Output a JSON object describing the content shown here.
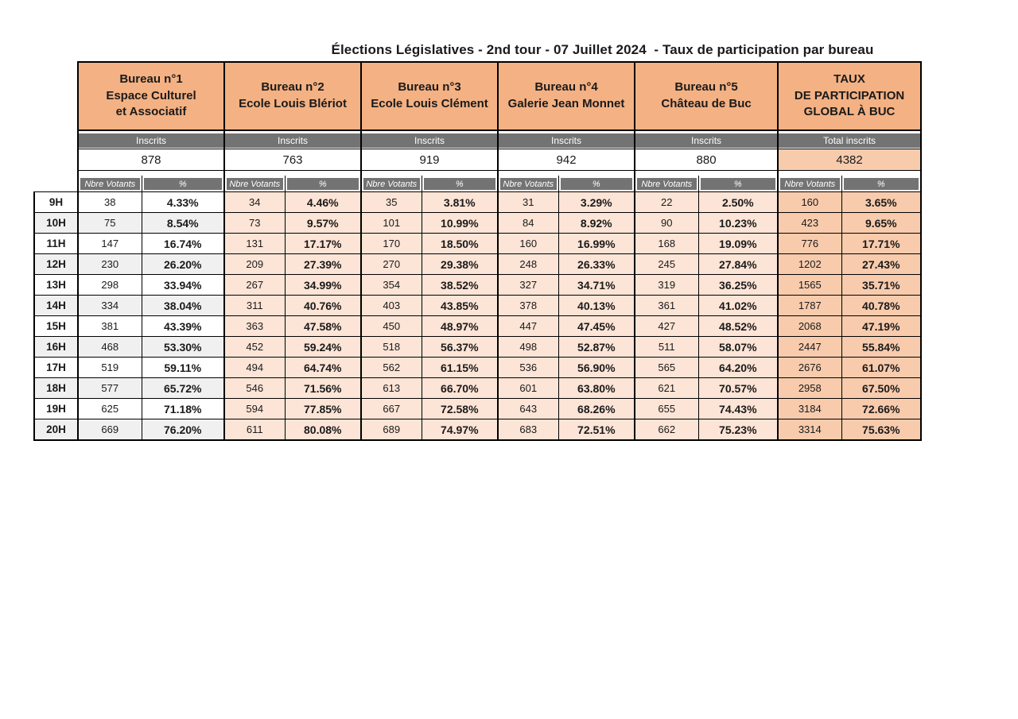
{
  "title": "Élections Législatives - 2nd tour - 07 Juillet 2024  - Taux de participation par bureau",
  "table": {
    "bureaus": [
      {
        "name": "Bureau n°1\nEspace Culturel\net Associatif",
        "inscrits_label": "Inscrits",
        "inscrits": "878"
      },
      {
        "name": "Bureau n°2\nEcole Louis Blériot",
        "inscrits_label": "Inscrits",
        "inscrits": "763"
      },
      {
        "name": "Bureau n°3\nEcole Louis Clément",
        "inscrits_label": "Inscrits",
        "inscrits": "919"
      },
      {
        "name": "Bureau n°4\nGalerie Jean Monnet",
        "inscrits_label": "Inscrits",
        "inscrits": "942"
      },
      {
        "name": "Bureau n°5\nChâteau de Buc",
        "inscrits_label": "Inscrits",
        "inscrits": "880"
      },
      {
        "name": "TAUX\nDE PARTICIPATION\nGLOBAL À BUC",
        "inscrits_label": "Total inscrits",
        "inscrits": "4382"
      }
    ],
    "subheaders": {
      "votants": "Nbre Votants",
      "pct": "%"
    },
    "rows": [
      {
        "time": "9H",
        "cells": [
          [
            "38",
            "4.33%"
          ],
          [
            "34",
            "4.46%"
          ],
          [
            "35",
            "3.81%"
          ],
          [
            "31",
            "3.29%"
          ],
          [
            "22",
            "2.50%"
          ],
          [
            "160",
            "3.65%"
          ]
        ]
      },
      {
        "time": "10H",
        "cells": [
          [
            "75",
            "8.54%"
          ],
          [
            "73",
            "9.57%"
          ],
          [
            "101",
            "10.99%"
          ],
          [
            "84",
            "8.92%"
          ],
          [
            "90",
            "10.23%"
          ],
          [
            "423",
            "9.65%"
          ]
        ]
      },
      {
        "time": "11H",
        "cells": [
          [
            "147",
            "16.74%"
          ],
          [
            "131",
            "17.17%"
          ],
          [
            "170",
            "18.50%"
          ],
          [
            "160",
            "16.99%"
          ],
          [
            "168",
            "19.09%"
          ],
          [
            "776",
            "17.71%"
          ]
        ]
      },
      {
        "time": "12H",
        "cells": [
          [
            "230",
            "26.20%"
          ],
          [
            "209",
            "27.39%"
          ],
          [
            "270",
            "29.38%"
          ],
          [
            "248",
            "26.33%"
          ],
          [
            "245",
            "27.84%"
          ],
          [
            "1202",
            "27.43%"
          ]
        ]
      },
      {
        "time": "13H",
        "cells": [
          [
            "298",
            "33.94%"
          ],
          [
            "267",
            "34.99%"
          ],
          [
            "354",
            "38.52%"
          ],
          [
            "327",
            "34.71%"
          ],
          [
            "319",
            "36.25%"
          ],
          [
            "1565",
            "35.71%"
          ]
        ]
      },
      {
        "time": "14H",
        "cells": [
          [
            "334",
            "38.04%"
          ],
          [
            "311",
            "40.76%"
          ],
          [
            "403",
            "43.85%"
          ],
          [
            "378",
            "40.13%"
          ],
          [
            "361",
            "41.02%"
          ],
          [
            "1787",
            "40.78%"
          ]
        ]
      },
      {
        "time": "15H",
        "cells": [
          [
            "381",
            "43.39%"
          ],
          [
            "363",
            "47.58%"
          ],
          [
            "450",
            "48.97%"
          ],
          [
            "447",
            "47.45%"
          ],
          [
            "427",
            "48.52%"
          ],
          [
            "2068",
            "47.19%"
          ]
        ]
      },
      {
        "time": "16H",
        "cells": [
          [
            "468",
            "53.30%"
          ],
          [
            "452",
            "59.24%"
          ],
          [
            "518",
            "56.37%"
          ],
          [
            "498",
            "52.87%"
          ],
          [
            "511",
            "58.07%"
          ],
          [
            "2447",
            "55.84%"
          ]
        ]
      },
      {
        "time": "17H",
        "cells": [
          [
            "519",
            "59.11%"
          ],
          [
            "494",
            "64.74%"
          ],
          [
            "562",
            "61.15%"
          ],
          [
            "536",
            "56.90%"
          ],
          [
            "565",
            "64.20%"
          ],
          [
            "2676",
            "61.07%"
          ]
        ]
      },
      {
        "time": "18H",
        "cells": [
          [
            "577",
            "65.72%"
          ],
          [
            "546",
            "71.56%"
          ],
          [
            "613",
            "66.70%"
          ],
          [
            "601",
            "63.80%"
          ],
          [
            "621",
            "70.57%"
          ],
          [
            "2958",
            "67.50%"
          ]
        ]
      },
      {
        "time": "19H",
        "cells": [
          [
            "625",
            "71.18%"
          ],
          [
            "594",
            "77.85%"
          ],
          [
            "667",
            "72.58%"
          ],
          [
            "643",
            "68.26%"
          ],
          [
            "655",
            "74.43%"
          ],
          [
            "3184",
            "72.66%"
          ]
        ]
      },
      {
        "time": "20H",
        "cells": [
          [
            "669",
            "76.20%"
          ],
          [
            "611",
            "80.08%"
          ],
          [
            "689",
            "74.97%"
          ],
          [
            "683",
            "72.51%"
          ],
          [
            "662",
            "75.23%"
          ],
          [
            "3314",
            "75.63%"
          ]
        ]
      }
    ]
  },
  "colors": {
    "header_peach": "#F4B183",
    "light_peach": "#FCE4D6",
    "mid_peach": "#F8CBAD",
    "band_gray": "#737373",
    "alt_gray": "#F0F0F0",
    "border_black": "#000000",
    "text_dark": "#1A1A1A"
  }
}
